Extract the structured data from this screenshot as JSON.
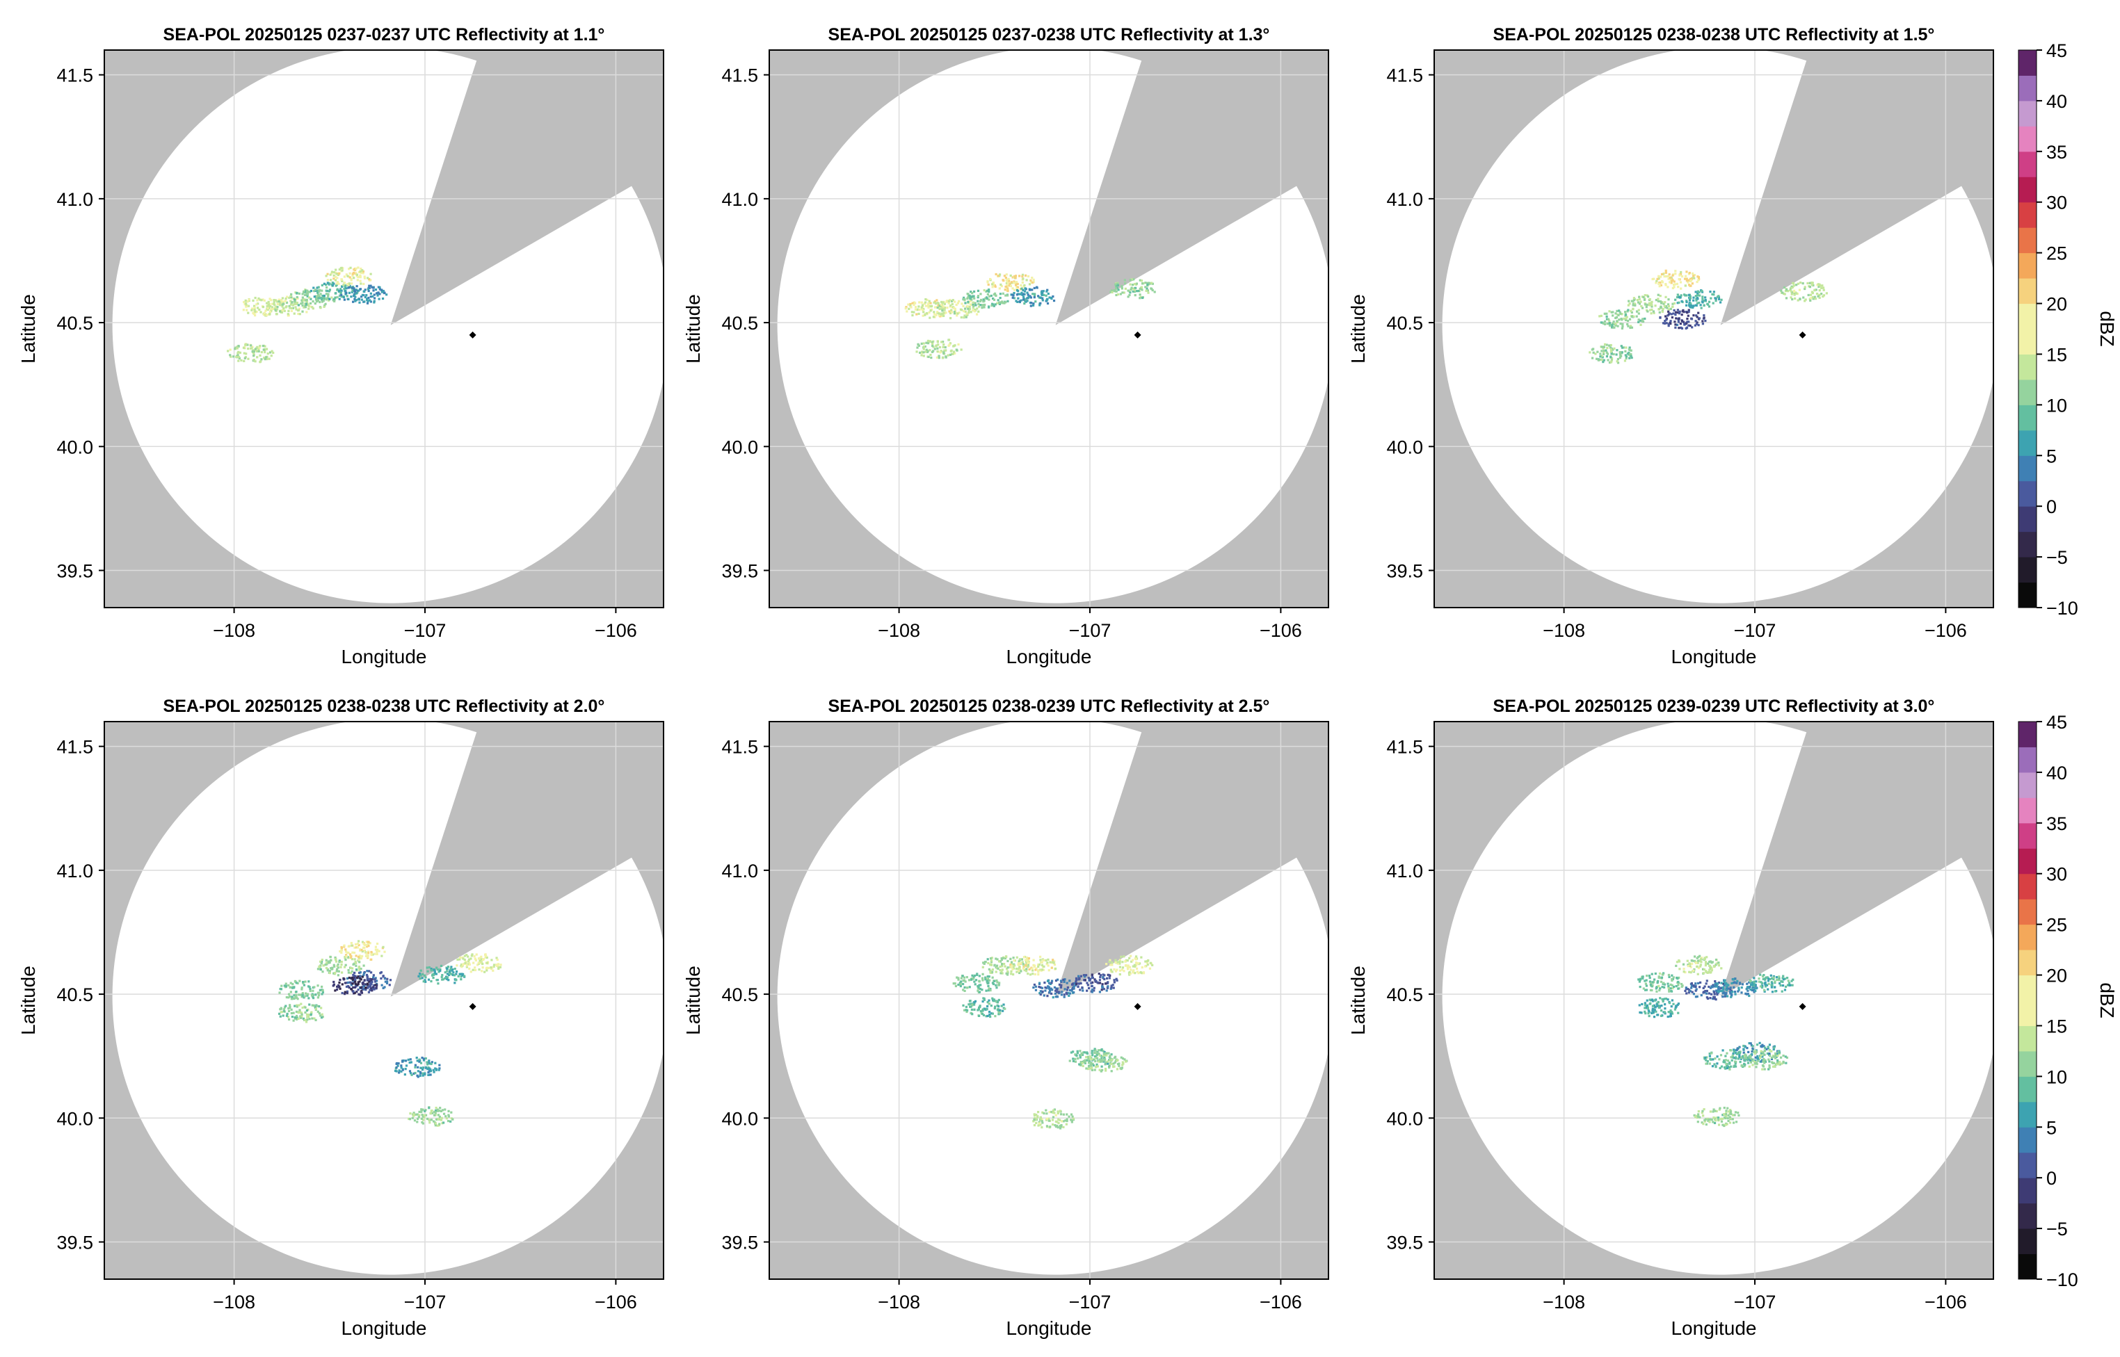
{
  "colors": {
    "masked": "#bebebe",
    "coverage": "#ffffff",
    "grid": "#dcdcdc",
    "radar_site": "#000000",
    "colormap": [
      "#0a0a0a",
      "#211b2a",
      "#33294a",
      "#3e3b74",
      "#4a5a9e",
      "#3f80b4",
      "#3da3b1",
      "#63bfa0",
      "#95d39e",
      "#c4e79c",
      "#f2f2a8",
      "#f6d27e",
      "#f4a85a",
      "#e97448",
      "#d84043",
      "#b61c52",
      "#cf3f86",
      "#e583bf",
      "#c59ad0",
      "#9b6dba",
      "#5f2569"
    ]
  },
  "chart_data": [
    {
      "type": "heatmap",
      "title": "SEA-POL 20250125 0237-0237 UTC Reflectivity at 1.1°",
      "xlabel": "Longitude",
      "ylabel": "Latitude",
      "xlim": [
        -108.68,
        -105.75
      ],
      "ylim": [
        39.35,
        41.6
      ],
      "xticks": [
        -108,
        -107,
        -106
      ],
      "xtick_labels": [
        "−108",
        "−107",
        "−106"
      ],
      "yticks": [
        39.5,
        40.0,
        40.5,
        41.0,
        41.5
      ],
      "ytick_labels": [
        "39.5",
        "40.0",
        "40.5",
        "41.0",
        "41.5"
      ],
      "grid": true,
      "radar_site": {
        "lon": -106.75,
        "lat": 40.45
      },
      "echoes": [
        {
          "lon": -107.85,
          "lat": 40.57,
          "dbz": 16
        },
        {
          "lon": -107.72,
          "lat": 40.57,
          "dbz": 15
        },
        {
          "lon": -107.6,
          "lat": 40.6,
          "dbz": 12
        },
        {
          "lon": -107.48,
          "lat": 40.63,
          "dbz": 9
        },
        {
          "lon": -107.4,
          "lat": 40.69,
          "dbz": 17
        },
        {
          "lon": -107.33,
          "lat": 40.62,
          "dbz": 5
        },
        {
          "lon": -107.92,
          "lat": 40.38,
          "dbz": 14
        }
      ]
    },
    {
      "type": "heatmap",
      "title": "SEA-POL 20250125 0237-0238 UTC Reflectivity at 1.3°",
      "xlabel": "Longitude",
      "ylabel": "Latitude",
      "xlim": [
        -108.68,
        -105.75
      ],
      "ylim": [
        39.35,
        41.6
      ],
      "xticks": [
        -108,
        -107,
        -106
      ],
      "xtick_labels": [
        "−108",
        "−107",
        "−106"
      ],
      "yticks": [
        39.5,
        40.0,
        40.5,
        41.0,
        41.5
      ],
      "ytick_labels": [
        "39.5",
        "40.0",
        "40.5",
        "41.0",
        "41.5"
      ],
      "grid": true,
      "radar_site": {
        "lon": -106.75,
        "lat": 40.45
      },
      "echoes": [
        {
          "lon": -107.85,
          "lat": 40.56,
          "dbz": 17
        },
        {
          "lon": -107.7,
          "lat": 40.56,
          "dbz": 15
        },
        {
          "lon": -107.55,
          "lat": 40.6,
          "dbz": 11
        },
        {
          "lon": -107.42,
          "lat": 40.67,
          "dbz": 18
        },
        {
          "lon": -107.3,
          "lat": 40.61,
          "dbz": 6
        },
        {
          "lon": -106.78,
          "lat": 40.64,
          "dbz": 12
        },
        {
          "lon": -107.8,
          "lat": 40.4,
          "dbz": 14
        }
      ]
    },
    {
      "type": "heatmap",
      "title": "SEA-POL 20250125 0238-0238 UTC Reflectivity at 1.5°",
      "xlabel": "Longitude",
      "ylabel": "Latitude",
      "xlim": [
        -108.68,
        -105.75
      ],
      "ylim": [
        39.35,
        41.6
      ],
      "xticks": [
        -108,
        -107,
        -106
      ],
      "xtick_labels": [
        "−108",
        "−107",
        "−106"
      ],
      "yticks": [
        39.5,
        40.0,
        40.5,
        41.0,
        41.5
      ],
      "ytick_labels": [
        "39.5",
        "40.0",
        "40.5",
        "41.0",
        "41.5"
      ],
      "grid": true,
      "radar_site": {
        "lon": -106.75,
        "lat": 40.45
      },
      "echoes": [
        {
          "lon": -107.7,
          "lat": 40.52,
          "dbz": 12
        },
        {
          "lon": -107.55,
          "lat": 40.58,
          "dbz": 13
        },
        {
          "lon": -107.42,
          "lat": 40.68,
          "dbz": 18
        },
        {
          "lon": -107.3,
          "lat": 40.6,
          "dbz": 8
        },
        {
          "lon": -107.38,
          "lat": 40.52,
          "dbz": 0
        },
        {
          "lon": -106.75,
          "lat": 40.63,
          "dbz": 14
        },
        {
          "lon": -107.75,
          "lat": 40.38,
          "dbz": 12
        }
      ]
    },
    {
      "type": "heatmap",
      "title": "SEA-POL 20250125 0238-0238 UTC Reflectivity at 2.0°",
      "xlabel": "Longitude",
      "ylabel": "Latitude",
      "xlim": [
        -108.68,
        -105.75
      ],
      "ylim": [
        39.35,
        41.6
      ],
      "xticks": [
        -108,
        -107,
        -106
      ],
      "xtick_labels": [
        "−108",
        "−107",
        "−106"
      ],
      "yticks": [
        39.5,
        40.0,
        40.5,
        41.0,
        41.5
      ],
      "ytick_labels": [
        "39.5",
        "40.0",
        "40.5",
        "41.0",
        "41.5"
      ],
      "grid": true,
      "radar_site": {
        "lon": -106.75,
        "lat": 40.45
      },
      "echoes": [
        {
          "lon": -107.65,
          "lat": 40.52,
          "dbz": 11
        },
        {
          "lon": -107.45,
          "lat": 40.62,
          "dbz": 13
        },
        {
          "lon": -107.33,
          "lat": 40.68,
          "dbz": 18
        },
        {
          "lon": -107.3,
          "lat": 40.56,
          "dbz": 2
        },
        {
          "lon": -107.38,
          "lat": 40.54,
          "dbz": -2
        },
        {
          "lon": -106.72,
          "lat": 40.63,
          "dbz": 16
        },
        {
          "lon": -106.92,
          "lat": 40.58,
          "dbz": 8
        },
        {
          "lon": -107.65,
          "lat": 40.43,
          "dbz": 12
        },
        {
          "lon": -106.97,
          "lat": 40.01,
          "dbz": 13
        },
        {
          "lon": -107.05,
          "lat": 40.21,
          "dbz": 6
        }
      ]
    },
    {
      "type": "heatmap",
      "title": "SEA-POL 20250125 0238-0239 UTC Reflectivity at 2.5°",
      "xlabel": "Longitude",
      "ylabel": "Latitude",
      "xlim": [
        -108.68,
        -105.75
      ],
      "ylim": [
        39.35,
        41.6
      ],
      "xticks": [
        -108,
        -107,
        -106
      ],
      "xtick_labels": [
        "−108",
        "−107",
        "−106"
      ],
      "yticks": [
        39.5,
        40.0,
        40.5,
        41.0,
        41.5
      ],
      "ytick_labels": [
        "39.5",
        "40.0",
        "40.5",
        "41.0",
        "41.5"
      ],
      "grid": true,
      "radar_site": {
        "lon": -106.75,
        "lat": 40.45
      },
      "echoes": [
        {
          "lon": -107.6,
          "lat": 40.55,
          "dbz": 11
        },
        {
          "lon": -107.45,
          "lat": 40.62,
          "dbz": 13
        },
        {
          "lon": -107.3,
          "lat": 40.62,
          "dbz": 17
        },
        {
          "lon": -107.18,
          "lat": 40.53,
          "dbz": 3
        },
        {
          "lon": -106.98,
          "lat": 40.55,
          "dbz": 1
        },
        {
          "lon": -106.8,
          "lat": 40.62,
          "dbz": 16
        },
        {
          "lon": -107.55,
          "lat": 40.45,
          "dbz": 9
        },
        {
          "lon": -107.0,
          "lat": 40.25,
          "dbz": 10
        },
        {
          "lon": -106.93,
          "lat": 40.23,
          "dbz": 13
        },
        {
          "lon": -107.2,
          "lat": 40.0,
          "dbz": 14
        }
      ]
    },
    {
      "type": "heatmap",
      "title": "SEA-POL 20250125 0239-0239 UTC Reflectivity at 3.0°",
      "xlabel": "Longitude",
      "ylabel": "Latitude",
      "xlim": [
        -108.68,
        -105.75
      ],
      "ylim": [
        39.35,
        41.6
      ],
      "xticks": [
        -108,
        -107,
        -106
      ],
      "xtick_labels": [
        "−108",
        "−107",
        "−106"
      ],
      "yticks": [
        39.5,
        40.0,
        40.5,
        41.0,
        41.5
      ],
      "ytick_labels": [
        "39.5",
        "40.0",
        "40.5",
        "41.0",
        "41.5"
      ],
      "grid": true,
      "radar_site": {
        "lon": -106.75,
        "lat": 40.45
      },
      "echoes": [
        {
          "lon": -107.5,
          "lat": 40.55,
          "dbz": 11
        },
        {
          "lon": -107.3,
          "lat": 40.62,
          "dbz": 14
        },
        {
          "lon": -107.25,
          "lat": 40.52,
          "dbz": 2
        },
        {
          "lon": -107.1,
          "lat": 40.53,
          "dbz": 5
        },
        {
          "lon": -106.92,
          "lat": 40.55,
          "dbz": 9
        },
        {
          "lon": -107.5,
          "lat": 40.45,
          "dbz": 8
        },
        {
          "lon": -107.0,
          "lat": 40.27,
          "dbz": 6
        },
        {
          "lon": -106.95,
          "lat": 40.24,
          "dbz": 12
        },
        {
          "lon": -107.15,
          "lat": 40.24,
          "dbz": 10
        },
        {
          "lon": -107.2,
          "lat": 40.01,
          "dbz": 13
        }
      ]
    }
  ],
  "colorbars": [
    {
      "label": "dBZ",
      "min": -10,
      "max": 45,
      "ticks": [
        -10,
        -5,
        0,
        5,
        10,
        15,
        20,
        25,
        30,
        35,
        40,
        45
      ],
      "tick_labels": [
        "−10",
        "−5",
        "0",
        "5",
        "10",
        "15",
        "20",
        "25",
        "30",
        "35",
        "40",
        "45"
      ]
    },
    {
      "label": "dBZ",
      "min": -10,
      "max": 45,
      "ticks": [
        -10,
        -5,
        0,
        5,
        10,
        15,
        20,
        25,
        30,
        35,
        40,
        45
      ],
      "tick_labels": [
        "−10",
        "−5",
        "0",
        "5",
        "10",
        "15",
        "20",
        "25",
        "30",
        "35",
        "40",
        "45"
      ]
    }
  ]
}
